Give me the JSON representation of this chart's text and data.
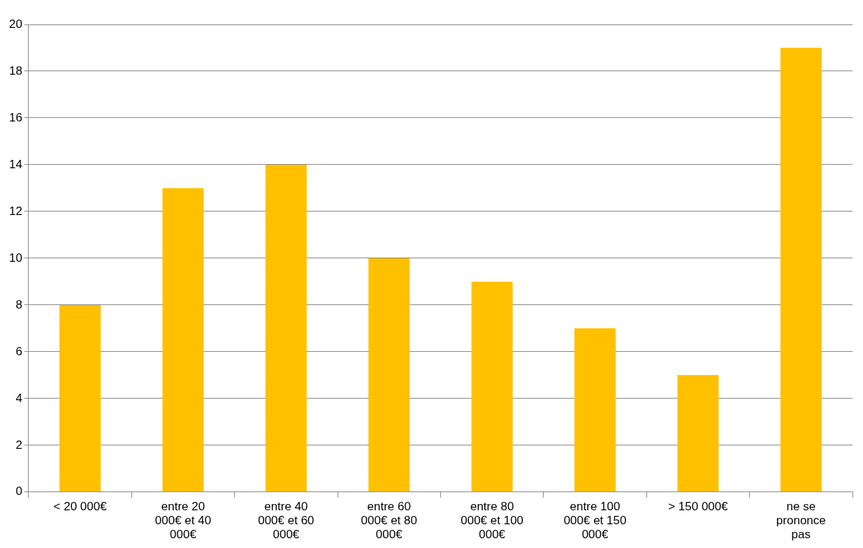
{
  "chart_data": {
    "type": "bar",
    "categories": [
      "< 20 000€",
      "entre 20 000€ et 40 000€",
      "entre 40 000€ et 60 000€",
      "entre 60 000€ et 80 000€",
      "entre 80 000€ et 100 000€",
      "entre 100 000€ et 150 000€",
      "> 150 000€",
      "ne se prononce pas"
    ],
    "values": [
      8,
      13,
      14,
      10,
      9,
      7,
      5,
      19
    ],
    "color": "#ffc000",
    "ylim": [
      0,
      20
    ],
    "yticks": [
      0,
      2,
      4,
      6,
      8,
      10,
      12,
      14,
      16,
      18,
      20
    ],
    "grid": "y",
    "legend": false
  }
}
